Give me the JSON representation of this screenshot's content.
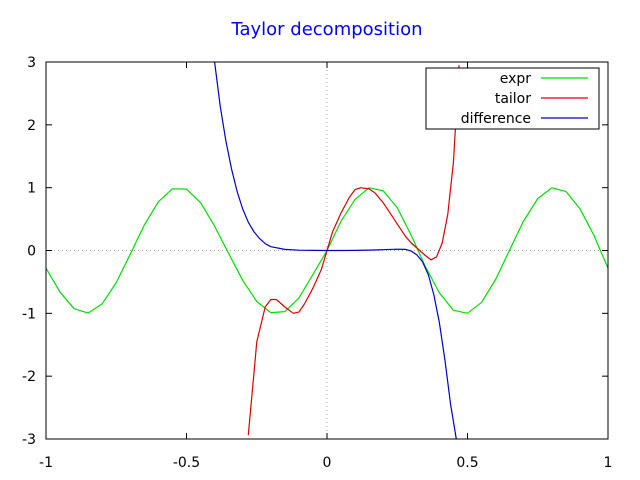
{
  "chart_data": {
    "type": "line",
    "title": "Taylor decomposition",
    "xlabel": "",
    "ylabel": "",
    "xlim": [
      -1,
      1
    ],
    "ylim": [
      -3,
      3
    ],
    "xticks": [
      -1,
      -0.5,
      0,
      0.5,
      1
    ],
    "xtick_labels": [
      "-1",
      "-0.5",
      "0",
      "0.5",
      "1"
    ],
    "yticks": [
      -3,
      -2,
      -1,
      0,
      1,
      2,
      3
    ],
    "ytick_labels": [
      "-3",
      "-2",
      "-1",
      "0",
      "1",
      "2",
      "3"
    ],
    "zero_axes": true,
    "legend_position": "top-right",
    "series": [
      {
        "name": "expr",
        "color": "#00dd00",
        "x": [
          -1.0,
          -0.95,
          -0.9,
          -0.85,
          -0.8,
          -0.75,
          -0.7,
          -0.65,
          -0.6,
          -0.55,
          -0.5,
          -0.45,
          -0.4,
          -0.35,
          -0.3,
          -0.25,
          -0.2,
          -0.15,
          -0.1,
          -0.05,
          0.0,
          0.05,
          0.1,
          0.15,
          0.2,
          0.25,
          0.3,
          0.35,
          0.4,
          0.45,
          0.5,
          0.55,
          0.6,
          0.65,
          0.7,
          0.75,
          0.8,
          0.85,
          0.9,
          0.95,
          1.0
        ],
        "y": [
          -0.282,
          -0.663,
          -0.926,
          -0.996,
          -0.848,
          -0.509,
          -0.057,
          0.404,
          0.777,
          0.982,
          0.977,
          0.76,
          0.389,
          -0.049,
          -0.474,
          -0.812,
          -0.989,
          -0.972,
          -0.756,
          -0.383,
          0.0,
          0.468,
          0.815,
          0.998,
          0.951,
          0.68,
          0.241,
          -0.256,
          -0.675,
          -0.95,
          -1.0,
          -0.825,
          -0.461,
          0.008,
          0.473,
          0.828,
          0.998,
          0.94,
          0.666,
          0.244,
          -0.282
        ]
      },
      {
        "name": "tailor",
        "color": "#dd0000",
        "x": [
          -0.28,
          -0.25,
          -0.22,
          -0.2,
          -0.18,
          -0.15,
          -0.12,
          -0.1,
          -0.08,
          -0.05,
          -0.02,
          0.0,
          0.02,
          0.05,
          0.08,
          0.1,
          0.12,
          0.15,
          0.17,
          0.2,
          0.23,
          0.25,
          0.28,
          0.3,
          0.33,
          0.35,
          0.37,
          0.39,
          0.41,
          0.43,
          0.45,
          0.47
        ],
        "y": [
          -2.94,
          -1.45,
          -0.9,
          -0.78,
          -0.78,
          -0.9,
          -1.0,
          -0.98,
          -0.85,
          -0.6,
          -0.3,
          0.0,
          0.3,
          0.6,
          0.85,
          0.97,
          1.0,
          0.98,
          0.92,
          0.76,
          0.56,
          0.42,
          0.22,
          0.12,
          0.0,
          -0.08,
          -0.15,
          -0.1,
          0.12,
          0.58,
          1.4,
          2.95
        ]
      },
      {
        "name": "difference",
        "color": "#0000cc",
        "x": [
          -0.4,
          -0.38,
          -0.36,
          -0.34,
          -0.32,
          -0.3,
          -0.28,
          -0.26,
          -0.24,
          -0.22,
          -0.2,
          -0.15,
          -0.1,
          -0.05,
          0.0,
          0.05,
          0.1,
          0.15,
          0.2,
          0.25,
          0.28,
          0.3,
          0.32,
          0.34,
          0.36,
          0.38,
          0.4,
          0.42,
          0.44,
          0.46
        ],
        "y": [
          3.0,
          2.3,
          1.75,
          1.3,
          0.94,
          0.66,
          0.45,
          0.3,
          0.19,
          0.11,
          0.06,
          0.018,
          0.005,
          0.001,
          0.0,
          0.0,
          0.002,
          0.006,
          0.012,
          0.02,
          0.018,
          -0.01,
          -0.07,
          -0.18,
          -0.38,
          -0.7,
          -1.15,
          -1.75,
          -2.45,
          -3.0
        ]
      }
    ]
  }
}
